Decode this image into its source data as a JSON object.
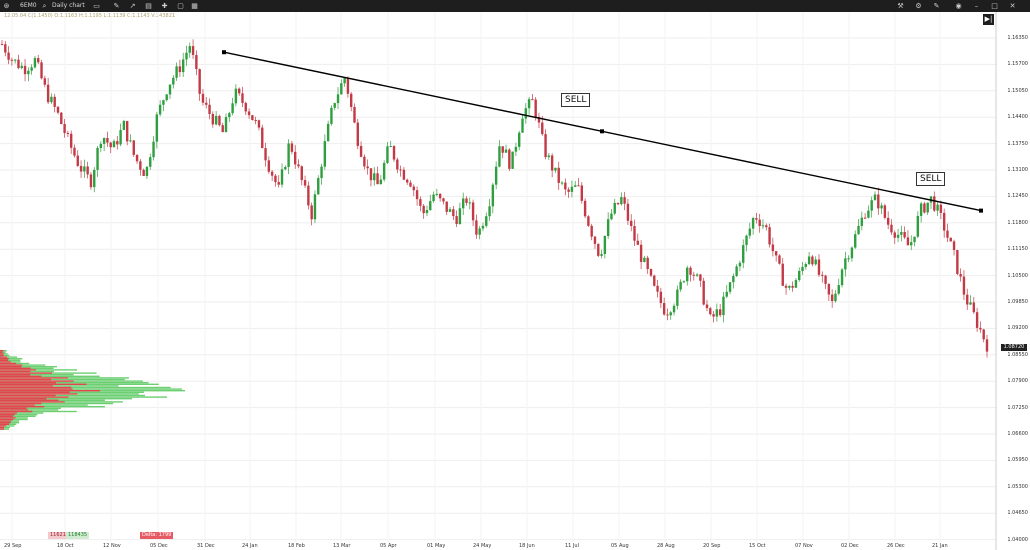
{
  "toolbar": {
    "symbol": "6EM0",
    "timeframe": "Daily chart",
    "right_icons": [
      "layout-icon",
      "settings-icon",
      "pen-icon",
      "camera-icon",
      "minimize-icon",
      "maximize-icon",
      "close-icon"
    ]
  },
  "ohlc_text": "12.05.04 C(1.1450) O:1.1163 H:1.1195 L:1.1139 C:1.1143 V:243821",
  "annotations": [
    "SELL",
    "SELL"
  ],
  "price_axis": [
    "1.16350",
    "1.15700",
    "1.15050",
    "1.14400",
    "1.13750",
    "1.13100",
    "1.12450",
    "1.11800",
    "1.11150",
    "1.10500",
    "1.09850",
    "1.09200",
    "1.08550",
    "1.07900",
    "1.07250",
    "1.06600",
    "1.05950",
    "1.05300",
    "1.04650",
    "1.04000"
  ],
  "last_price": "1.08720",
  "date_axis": [
    "29 Sep",
    "18 Oct",
    "12 Nov",
    "05 Dec",
    "31 Dec",
    "24 Jan",
    "18 Feb",
    "13 Mar",
    "05 Apr",
    "01 May",
    "24 May",
    "18 Jun",
    "11 Jul",
    "05 Aug",
    "28 Aug",
    "20 Sep",
    "15 Oct",
    "07 Nov",
    "02 Dec",
    "26 Dec",
    "21 Jan"
  ],
  "bottom_values": {
    "left": "11621",
    "mid": "118435",
    "delta": "Delta: 1799"
  },
  "colors": {
    "bull": "#2e9e3e",
    "bear": "#c23a45",
    "trendline": "#000000"
  },
  "chart_data": {
    "type": "candlestick",
    "trendline": {
      "start": {
        "date": "31 Dec",
        "price": 1.16
      },
      "end": {
        "date": "21 Jan",
        "price": 1.121
      }
    },
    "close_path": [
      1.162,
      1.158,
      1.156,
      1.158,
      1.15,
      1.145,
      1.138,
      1.132,
      1.128,
      1.14,
      1.136,
      1.142,
      1.134,
      1.13,
      1.144,
      1.152,
      1.156,
      1.162,
      1.148,
      1.144,
      1.14,
      1.15,
      1.147,
      1.142,
      1.133,
      1.126,
      1.138,
      1.129,
      1.12,
      1.135,
      1.148,
      1.154,
      1.14,
      1.131,
      1.127,
      1.137,
      1.131,
      1.128,
      1.12,
      1.125,
      1.122,
      1.119,
      1.124,
      1.115,
      1.123,
      1.138,
      1.132,
      1.145,
      1.148,
      1.136,
      1.13,
      1.125,
      1.127,
      1.118,
      1.11,
      1.12,
      1.124,
      1.115,
      1.108,
      1.101,
      1.096,
      1.1,
      1.108,
      1.103,
      1.094,
      1.097,
      1.104,
      1.112,
      1.12,
      1.117,
      1.108,
      1.101,
      1.105,
      1.111,
      1.104,
      1.098,
      1.108,
      1.114,
      1.121,
      1.124,
      1.118,
      1.115,
      1.112,
      1.121,
      1.124,
      1.118,
      1.11,
      1.1,
      1.094,
      1.088
    ]
  }
}
